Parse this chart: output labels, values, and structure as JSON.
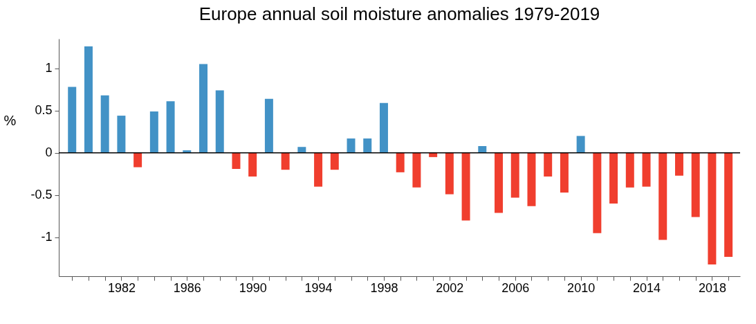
{
  "chart_data": {
    "type": "bar",
    "title": "Europe annual soil moisture anomalies 1979-2019",
    "ylabel": "%",
    "x": [
      1979,
      1980,
      1981,
      1982,
      1983,
      1984,
      1985,
      1986,
      1987,
      1988,
      1989,
      1990,
      1991,
      1992,
      1993,
      1994,
      1995,
      1996,
      1997,
      1998,
      1999,
      2000,
      2001,
      2002,
      2003,
      2004,
      2005,
      2006,
      2007,
      2008,
      2009,
      2010,
      2011,
      2012,
      2013,
      2014,
      2015,
      2016,
      2017,
      2018,
      2019
    ],
    "values": [
      0.78,
      1.26,
      0.68,
      0.44,
      -0.17,
      0.49,
      0.61,
      0.03,
      1.05,
      0.74,
      -0.19,
      -0.28,
      0.64,
      -0.2,
      0.07,
      -0.4,
      -0.2,
      0.17,
      0.17,
      0.59,
      -0.23,
      -0.41,
      -0.05,
      -0.49,
      -0.8,
      0.08,
      -0.71,
      -0.53,
      -0.63,
      -0.28,
      -0.47,
      0.2,
      -0.95,
      -0.6,
      -0.41,
      -0.4,
      -1.03,
      -0.27,
      -0.76,
      -1.32,
      -1.23
    ],
    "colors": [
      "#4292c6",
      "#4292c6",
      "#4292c6",
      "#4292c6",
      "#f03e2e",
      "#4292c6",
      "#4292c6",
      "#4292c6",
      "#4292c6",
      "#4292c6",
      "#f03e2e",
      "#f03e2e",
      "#4292c6",
      "#f03e2e",
      "#4292c6",
      "#f03e2e",
      "#f03e2e",
      "#4292c6",
      "#4292c6",
      "#4292c6",
      "#f03e2e",
      "#f03e2e",
      "#f03e2e",
      "#f03e2e",
      "#f03e2e",
      "#4292c6",
      "#f03e2e",
      "#f03e2e",
      "#f03e2e",
      "#f03e2e",
      "#f03e2e",
      "#4292c6",
      "#f03e2e",
      "#f03e2e",
      "#f03e2e",
      "#f03e2e",
      "#f03e2e",
      "#f03e2e",
      "#f03e2e",
      "#f03e2e",
      "#f03e2e"
    ],
    "xlim": [
      1978.4,
      2019.5
    ],
    "xticks": [
      {
        "value": 1979,
        "label": null
      },
      {
        "value": 1980,
        "label": null
      },
      {
        "value": 1981,
        "label": null
      },
      1982,
      {
        "value": 1983,
        "label": null
      },
      {
        "value": 1984,
        "label": null
      },
      {
        "value": 1985,
        "label": null
      },
      1986,
      {
        "value": 1987,
        "label": null
      },
      {
        "value": 1988,
        "label": null
      },
      {
        "value": 1989,
        "label": null
      },
      1990,
      {
        "value": 1991,
        "label": null
      },
      {
        "value": 1992,
        "label": null
      },
      {
        "value": 1993,
        "label": null
      },
      1994,
      {
        "value": 1995,
        "label": null
      },
      {
        "value": 1996,
        "label": null
      },
      {
        "value": 1997,
        "label": null
      },
      1998,
      {
        "value": 1999,
        "label": null
      },
      {
        "value": 2000,
        "label": null
      },
      {
        "value": 2001,
        "label": null
      },
      2002,
      {
        "value": 2003,
        "label": null
      },
      {
        "value": 2004,
        "label": null
      },
      {
        "value": 2005,
        "label": null
      },
      2006,
      {
        "value": 2007,
        "label": null
      },
      {
        "value": 2008,
        "label": null
      },
      {
        "value": 2009,
        "label": null
      },
      2010,
      {
        "value": 2011,
        "label": null
      },
      {
        "value": 2012,
        "label": null
      },
      {
        "value": 2013,
        "label": null
      },
      2014,
      {
        "value": 2015,
        "label": null
      },
      {
        "value": 2016,
        "label": null
      },
      {
        "value": 2017,
        "label": null
      },
      2018,
      {
        "value": 2019,
        "label": null
      }
    ],
    "ylim": [
      -1.46,
      1.35
    ],
    "yticks": [
      -1,
      -0.5,
      0,
      0.5,
      1
    ],
    "ref_lines": [
      {
        "axis": "y",
        "value": 0,
        "color": "#000000"
      }
    ],
    "grid": false
  }
}
